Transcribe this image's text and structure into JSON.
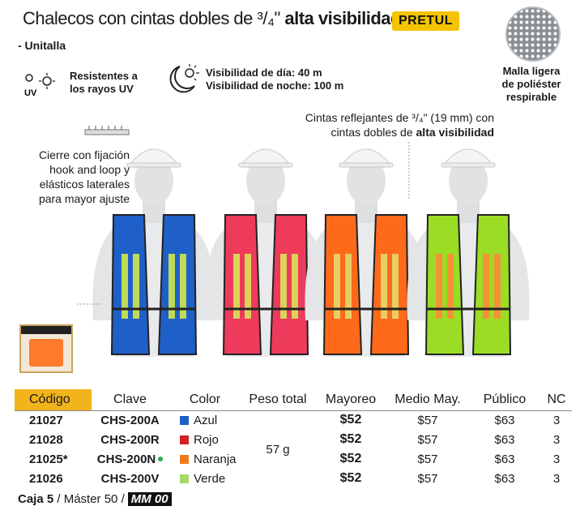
{
  "header": {
    "title_prefix": "Chalecos con cintas dobles de ³/₄\"",
    "title_bold": "alta visibilidad",
    "brand": "PRETUL",
    "unitalla": "- Unitalla"
  },
  "features": {
    "uv_line1": "Resistentes a",
    "uv_line2": "los rayos UV",
    "day": "Visibilidad de día: 40 m",
    "night": "Visibilidad de noche: 100 m",
    "mesh_line1": "Malla ligera",
    "mesh_line2": "de poliéster",
    "mesh_line3": "respirable"
  },
  "callouts": {
    "cintas_line1": "Cintas reflejantes de ³/₄\" (19 mm) con",
    "cintas_line2_prefix": "cintas dobles de",
    "cintas_line2_bold": "alta visibilidad",
    "cierre_line1": "Cierre con fijación",
    "cierre_line2": "hook and loop y",
    "cierre_line3": "elásticos laterales",
    "cierre_line4": "para mayor ajuste"
  },
  "vests": [
    {
      "color": "#1f5fc8",
      "stripe": "#cfe84a"
    },
    {
      "color": "#ee3b5b",
      "stripe": "#d8e35a"
    },
    {
      "color": "#ff6a1a",
      "stripe": "#e4d86a"
    },
    {
      "color": "#9bdc25",
      "stripe": "#ff8a3a"
    }
  ],
  "table": {
    "headers": {
      "code": "Código",
      "clave": "Clave",
      "color": "Color",
      "peso": "Peso total",
      "mayoreo": "Mayoreo",
      "medio": "Medio May.",
      "publico": "Público",
      "nc": "NC"
    },
    "peso": "57 g",
    "rows": [
      {
        "code": "21027",
        "clave": "CHS-200A",
        "color": "Azul",
        "swatch": "#1f5fc8",
        "mayoreo": "$52",
        "medio": "$57",
        "publico": "$63",
        "nc": "3"
      },
      {
        "code": "21028",
        "clave": "CHS-200R",
        "color": "Rojo",
        "swatch": "#d42027",
        "mayoreo": "$52",
        "medio": "$57",
        "publico": "$63",
        "nc": "3"
      },
      {
        "code": "21025*",
        "clave": "CHS-200N",
        "color": "Naranja",
        "swatch": "#f47a20",
        "mayoreo": "$52",
        "medio": "$57",
        "publico": "$63",
        "nc": "3"
      },
      {
        "code": "21026",
        "clave": "CHS-200V",
        "color": "Verde",
        "swatch": "#a8d86a",
        "mayoreo": "$52",
        "medio": "$57",
        "publico": "$63",
        "nc": "3"
      }
    ]
  },
  "footer": {
    "caja": "Caja 5",
    "master": " / Máster 50 /",
    "mm": "MM 00"
  }
}
